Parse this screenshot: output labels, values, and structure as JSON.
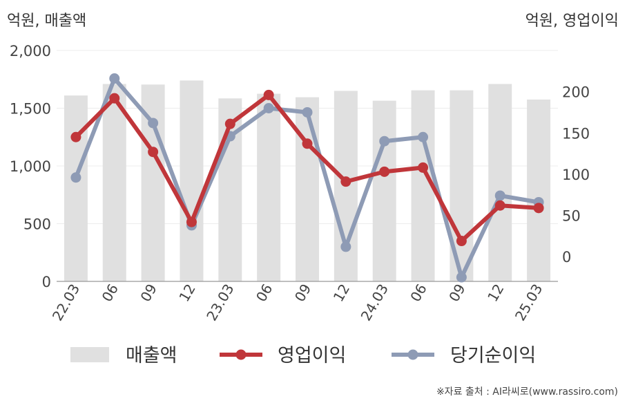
{
  "chart_data": {
    "type": "bar",
    "left_unit": "억원, 매출액",
    "right_unit": "억원, 영업이익",
    "categories": [
      "22.03",
      "06",
      "09",
      "12",
      "23.03",
      "06",
      "09",
      "12",
      "24.03",
      "06",
      "09",
      "12",
      "25.03"
    ],
    "y_left": {
      "min": 0,
      "max": 2000,
      "ticks": [
        "0",
        "500",
        "1,000",
        "1,500",
        "2,000"
      ],
      "tick_values": [
        0,
        500,
        1000,
        1500,
        2000
      ]
    },
    "y_right": {
      "min": -30,
      "max": 250,
      "ticks": [
        "0",
        "50",
        "100",
        "150",
        "200"
      ],
      "tick_values": [
        0,
        50,
        100,
        150,
        200
      ]
    },
    "grid": true,
    "legend_position": "bottom",
    "series": [
      {
        "name": "매출액",
        "kind": "bar",
        "axis": "left",
        "color": "#e0e0e0",
        "values": [
          1610,
          1710,
          1705,
          1740,
          1585,
          1625,
          1595,
          1650,
          1565,
          1655,
          1655,
          1710,
          1575
        ]
      },
      {
        "name": "영업이익",
        "kind": "line",
        "axis": "right",
        "color": "#c0363a",
        "values": [
          145,
          192,
          127,
          42,
          161,
          196,
          137,
          91,
          103,
          108,
          19,
          62,
          59
        ]
      },
      {
        "name": "당기순이익",
        "kind": "line",
        "axis": "right",
        "color": "#8e9bb5",
        "values": [
          96,
          216,
          162,
          38,
          146,
          180,
          175,
          12,
          140,
          145,
          -25,
          74,
          66
        ]
      }
    ]
  },
  "source_text": "※자료 출처 : AI라씨로(www.rassiro.com)"
}
